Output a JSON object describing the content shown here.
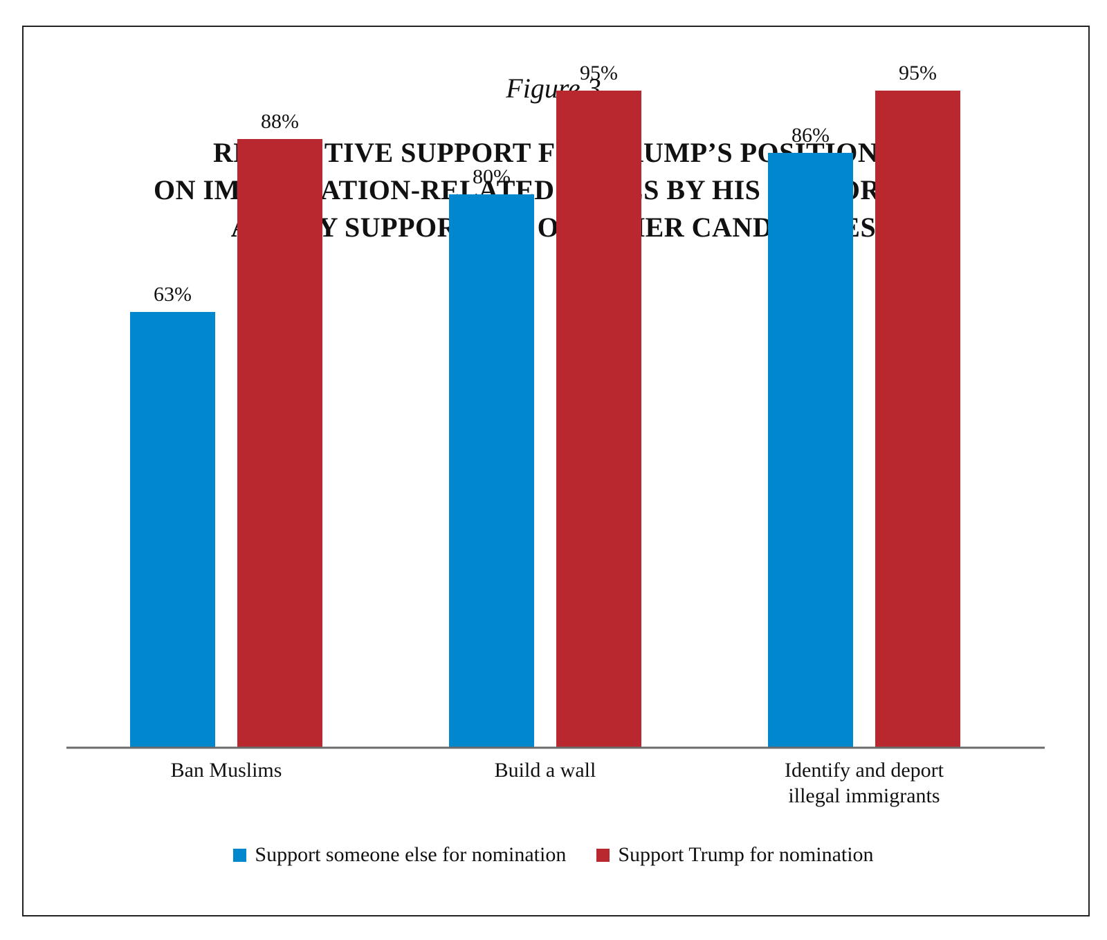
{
  "figure_label": "Figure 3",
  "title_lines": [
    "RESPECTIVE SUPPORT FOR TRUMP’S POSITIONS",
    "ON IMMIGRATION-RELATED ISSUES BY HIS SUPPORTERS",
    "AND BY SUPPORTERS OF OTHER CANDIDATES"
  ],
  "colors": {
    "someone_else": "#0087cd",
    "trump": "#b8282e",
    "axis": "#6b6b6b"
  },
  "chart_data": {
    "type": "bar",
    "title": "RESPECTIVE SUPPORT FOR TRUMP’S POSITIONS ON IMMIGRATION-RELATED ISSUES BY HIS SUPPORTERS AND BY SUPPORTERS OF OTHER CANDIDATES",
    "categories": [
      [
        "Ban Muslims"
      ],
      [
        "Build a wall"
      ],
      [
        "Identify and deport",
        "illegal immigrants"
      ]
    ],
    "series": [
      {
        "name": "Support someone else for nomination",
        "values": [
          63,
          80,
          86
        ],
        "labels": [
          "63%",
          "80%",
          "86%"
        ]
      },
      {
        "name": "Support Trump for nomination",
        "values": [
          88,
          95,
          95
        ],
        "labels": [
          "88%",
          "95%",
          "95%"
        ]
      }
    ],
    "ylim": [
      0,
      100
    ],
    "xlabel": "",
    "ylabel": "",
    "grid": false,
    "legend_position": "bottom"
  }
}
